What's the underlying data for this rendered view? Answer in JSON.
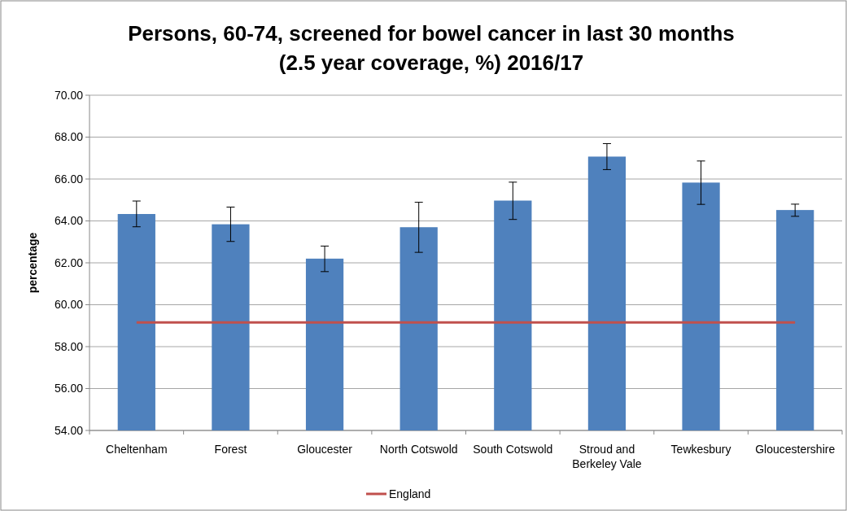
{
  "chart_data": {
    "type": "bar",
    "title": "Persons, 60-74, screened for bowel cancer in last 30 months\n(2.5 year coverage, %) 2016/17",
    "ylabel": "percentage",
    "categories": [
      "Cheltenham",
      "Forest",
      "Gloucester",
      "North Cotswold",
      "South Cotswold",
      "Stroud and Berkeley Vale",
      "Tewkesbury",
      "Gloucestershire"
    ],
    "series": [
      {
        "color": "#4f81bd",
        "values": [
          64.33,
          63.84,
          62.2,
          63.7,
          64.97,
          67.07,
          65.83,
          64.52
        ],
        "errors": [
          [
            63.72,
            64.95
          ],
          [
            63.02,
            64.66
          ],
          [
            61.58,
            62.8
          ],
          [
            62.5,
            64.89
          ],
          [
            64.07,
            65.85
          ],
          [
            66.45,
            67.69
          ],
          [
            64.79,
            66.86
          ],
          [
            64.22,
            64.8
          ]
        ]
      },
      {
        "type": "line",
        "name": "England",
        "color": "#c0504d",
        "values": [
          59.16,
          59.16,
          59.16,
          59.16,
          59.16,
          59.16,
          59.16,
          59.16
        ]
      }
    ],
    "ylim": [
      54,
      70
    ],
    "yticks": [
      {
        "value": 54,
        "label": "54.00"
      },
      {
        "value": 56,
        "label": "56.00"
      },
      {
        "value": 58,
        "label": "58.00"
      },
      {
        "value": 60,
        "label": "60.00"
      },
      {
        "value": 62,
        "label": "62.00"
      },
      {
        "value": 64,
        "label": "64.00"
      },
      {
        "value": 66,
        "label": "66.00"
      },
      {
        "value": 68,
        "label": "68.00"
      },
      {
        "value": 70,
        "label": "70.00"
      }
    ],
    "grid": "y",
    "legend": "bottom"
  }
}
